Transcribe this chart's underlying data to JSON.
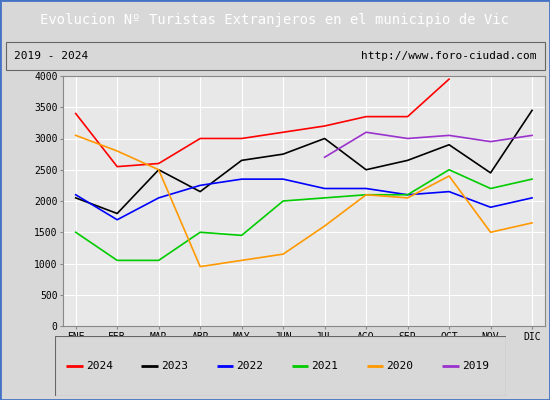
{
  "title": "Evolucion Nº Turistas Extranjeros en el municipio de Vic",
  "subtitle_left": "2019 - 2024",
  "subtitle_right": "http://www.foro-ciudad.com",
  "title_bg_color": "#4472c4",
  "title_text_color": "#ffffff",
  "months": [
    "ENE",
    "FEB",
    "MAR",
    "ABR",
    "MAY",
    "JUN",
    "JUL",
    "AGO",
    "SEP",
    "OCT",
    "NOV",
    "DIC"
  ],
  "ylim": [
    0,
    4000
  ],
  "yticks": [
    0,
    500,
    1000,
    1500,
    2000,
    2500,
    3000,
    3500,
    4000
  ],
  "series": {
    "2024": {
      "color": "#ff0000",
      "values": [
        3400,
        2550,
        2600,
        3000,
        3000,
        3100,
        3200,
        3350,
        3350,
        3950,
        null,
        null
      ]
    },
    "2023": {
      "color": "#000000",
      "values": [
        2050,
        1800,
        2500,
        2150,
        2650,
        2750,
        3000,
        2500,
        2650,
        2900,
        2450,
        3450
      ]
    },
    "2022": {
      "color": "#0000ff",
      "values": [
        2100,
        1700,
        2050,
        2250,
        2350,
        2350,
        2200,
        2200,
        2100,
        2150,
        1900,
        2050
      ]
    },
    "2021": {
      "color": "#00cc00",
      "values": [
        1500,
        1050,
        1050,
        1500,
        1450,
        2000,
        2050,
        2100,
        2100,
        2500,
        2200,
        2350
      ]
    },
    "2020": {
      "color": "#ff9900",
      "values": [
        3050,
        2800,
        2500,
        950,
        1050,
        1150,
        1600,
        2100,
        2050,
        2400,
        1500,
        1650
      ]
    },
    "2019": {
      "color": "#9933cc",
      "values": [
        null,
        null,
        null,
        null,
        null,
        null,
        2700,
        3100,
        3000,
        3050,
        2950,
        3050
      ]
    }
  },
  "legend_order": [
    "2024",
    "2023",
    "2022",
    "2021",
    "2020",
    "2019"
  ],
  "bg_color": "#d8d8d8",
  "plot_bg_color": "#e8e8e8",
  "grid_color": "#ffffff",
  "outer_border_color": "#4472c4",
  "inner_border_color": "#888888"
}
